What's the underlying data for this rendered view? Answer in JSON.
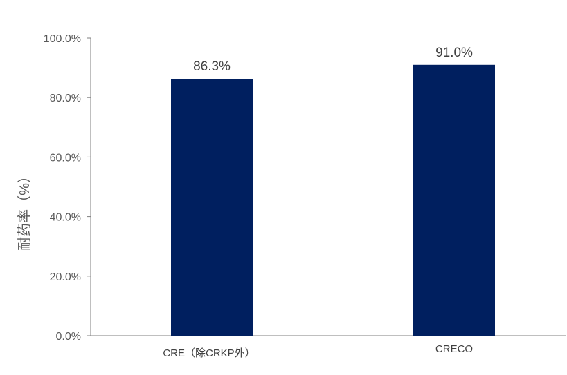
{
  "colors": {
    "bar": "#001f5f",
    "axis": "#7f7f7f",
    "text": "#595959"
  },
  "chart_data": {
    "type": "bar",
    "title": "",
    "xlabel": "",
    "ylabel": "耐药率（%）",
    "categories": [
      "CRE（除CRKP外）",
      "CRECO"
    ],
    "values": [
      86.3,
      91.0
    ],
    "value_labels": [
      "86.3%",
      "91.0%"
    ],
    "ylim": [
      0,
      100
    ],
    "yticks": [
      0,
      20,
      40,
      60,
      80,
      100
    ],
    "ytick_labels": [
      "0.0%",
      "20.0%",
      "40.0%",
      "60.0%",
      "80.0%",
      "100.0%"
    ],
    "grid": false,
    "legend": "none"
  }
}
